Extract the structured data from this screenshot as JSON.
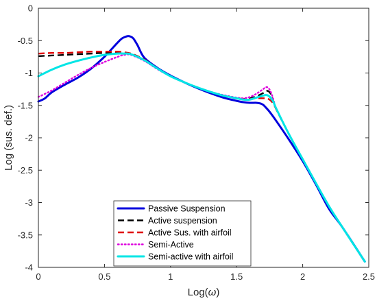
{
  "chart_data": {
    "type": "line",
    "xlabel_main": "Log(",
    "xlabel_symbol": "ω",
    "xlabel_end": ")",
    "ylabel": "Log (sus. def.)",
    "xlim": [
      0,
      2.5
    ],
    "ylim": [
      -4,
      0
    ],
    "xticks": [
      0,
      0.5,
      1,
      1.5,
      2,
      2.5
    ],
    "xtick_labels": [
      "0",
      "0.5",
      "1",
      "1.5",
      "2",
      "2.5"
    ],
    "yticks": [
      0,
      -0.5,
      -1,
      -1.5,
      -2,
      -2.5,
      -3,
      -3.5,
      -4
    ],
    "ytick_labels": [
      "0",
      "-0.5",
      "-1",
      "-1.5",
      "-2",
      "-2.5",
      "-3",
      "-3.5",
      "-4"
    ],
    "grid": false,
    "legend_position": "bottom-center",
    "series": [
      {
        "name": "Passive Suspension",
        "color": "#0000dd",
        "style": "solid",
        "x": [
          0,
          0.05,
          0.1,
          0.2,
          0.3,
          0.4,
          0.5,
          0.55,
          0.6,
          0.63,
          0.66,
          0.68,
          0.7,
          0.72,
          0.75,
          0.8,
          0.9,
          1.0,
          1.1,
          1.2,
          1.3,
          1.4,
          1.5,
          1.55,
          1.6,
          1.65,
          1.68,
          1.7,
          1.72,
          1.75,
          1.8,
          1.9,
          2.0,
          2.1,
          2.2,
          2.3,
          2.47
        ],
        "y": [
          -1.44,
          -1.39,
          -1.3,
          -1.18,
          -1.07,
          -0.93,
          -0.75,
          -0.64,
          -0.53,
          -0.47,
          -0.44,
          -0.43,
          -0.44,
          -0.47,
          -0.57,
          -0.76,
          -0.92,
          -1.04,
          -1.14,
          -1.23,
          -1.31,
          -1.38,
          -1.43,
          -1.45,
          -1.46,
          -1.46,
          -1.47,
          -1.49,
          -1.53,
          -1.6,
          -1.74,
          -2.04,
          -2.36,
          -2.72,
          -3.1,
          -3.38,
          -3.91
        ]
      },
      {
        "name": "Active suspension",
        "color": "#000000",
        "style": "dashed",
        "x": [
          0,
          0.1,
          0.2,
          0.3,
          0.4,
          0.5,
          0.6,
          0.65,
          0.7,
          0.8,
          0.9,
          1.0,
          1.1,
          1.2,
          1.3,
          1.4,
          1.5,
          1.55,
          1.6,
          1.65,
          1.7,
          1.72,
          1.74,
          1.76,
          1.78,
          1.8,
          1.9,
          2.0,
          2.1,
          2.2,
          2.3,
          2.47
        ],
        "y": [
          -0.74,
          -0.73,
          -0.72,
          -0.71,
          -0.7,
          -0.69,
          -0.69,
          -0.69,
          -0.7,
          -0.79,
          -0.93,
          -1.05,
          -1.14,
          -1.22,
          -1.29,
          -1.35,
          -1.39,
          -1.4,
          -1.39,
          -1.36,
          -1.31,
          -1.28,
          -1.28,
          -1.33,
          -1.45,
          -1.56,
          -1.96,
          -2.33,
          -2.7,
          -3.06,
          -3.38,
          -3.91
        ]
      },
      {
        "name": "Active Sus. with airfoil",
        "color": "#e00000",
        "style": "dashed",
        "x": [
          0,
          0.1,
          0.2,
          0.3,
          0.4,
          0.5,
          0.6,
          0.65,
          0.7,
          0.8,
          0.9,
          1.0,
          1.1,
          1.2,
          1.3,
          1.4,
          1.5,
          1.55,
          1.6,
          1.65,
          1.7,
          1.72,
          1.74,
          1.76,
          1.78,
          1.8,
          1.9,
          2.0,
          2.1,
          2.2,
          2.3,
          2.47
        ],
        "y": [
          -0.7,
          -0.69,
          -0.69,
          -0.68,
          -0.67,
          -0.67,
          -0.67,
          -0.68,
          -0.7,
          -0.79,
          -0.93,
          -1.05,
          -1.14,
          -1.22,
          -1.29,
          -1.35,
          -1.39,
          -1.4,
          -1.4,
          -1.39,
          -1.39,
          -1.39,
          -1.4,
          -1.43,
          -1.48,
          -1.56,
          -1.96,
          -2.33,
          -2.7,
          -3.06,
          -3.38,
          -3.91
        ]
      },
      {
        "name": "Semi-Active",
        "color": "#dd00dd",
        "style": "dotted",
        "x": [
          0,
          0.1,
          0.2,
          0.3,
          0.4,
          0.5,
          0.6,
          0.65,
          0.7,
          0.8,
          0.9,
          1.0,
          1.1,
          1.2,
          1.3,
          1.4,
          1.5,
          1.55,
          1.6,
          1.65,
          1.7,
          1.72,
          1.74,
          1.76,
          1.78,
          1.8,
          1.9,
          2.0,
          2.1,
          2.2,
          2.3,
          2.47
        ],
        "y": [
          -1.37,
          -1.27,
          -1.15,
          -1.03,
          -0.92,
          -0.83,
          -0.75,
          -0.72,
          -0.72,
          -0.81,
          -0.94,
          -1.05,
          -1.14,
          -1.22,
          -1.29,
          -1.34,
          -1.38,
          -1.39,
          -1.37,
          -1.32,
          -1.25,
          -1.22,
          -1.23,
          -1.3,
          -1.42,
          -1.55,
          -1.96,
          -2.33,
          -2.7,
          -3.06,
          -3.38,
          -3.91
        ]
      },
      {
        "name": "Semi-active with airfoil",
        "color": "#00e5e5",
        "style": "solid",
        "x": [
          0,
          0.1,
          0.2,
          0.3,
          0.4,
          0.5,
          0.6,
          0.65,
          0.7,
          0.8,
          0.9,
          1.0,
          1.1,
          1.2,
          1.3,
          1.4,
          1.5,
          1.55,
          1.6,
          1.65,
          1.7,
          1.72,
          1.74,
          1.76,
          1.78,
          1.8,
          1.9,
          2.0,
          2.1,
          2.2,
          2.3,
          2.47
        ],
        "y": [
          -1.05,
          -0.95,
          -0.87,
          -0.81,
          -0.76,
          -0.72,
          -0.7,
          -0.7,
          -0.71,
          -0.8,
          -0.93,
          -1.05,
          -1.14,
          -1.22,
          -1.29,
          -1.35,
          -1.39,
          -1.41,
          -1.41,
          -1.38,
          -1.35,
          -1.34,
          -1.35,
          -1.39,
          -1.45,
          -1.55,
          -1.96,
          -2.33,
          -2.7,
          -3.06,
          -3.38,
          -3.91
        ]
      }
    ]
  }
}
